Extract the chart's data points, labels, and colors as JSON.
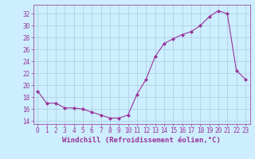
{
  "x": [
    0,
    1,
    2,
    3,
    4,
    5,
    6,
    7,
    8,
    9,
    10,
    11,
    12,
    13,
    14,
    15,
    16,
    17,
    18,
    19,
    20,
    21,
    22,
    23
  ],
  "y": [
    19,
    17,
    17,
    16.2,
    16.2,
    16,
    15.5,
    15,
    14.5,
    14.5,
    15,
    18.5,
    21,
    24.8,
    27,
    27.8,
    28.5,
    29,
    30,
    31.5,
    32.5,
    32,
    22.5,
    21
  ],
  "line_color": "#993399",
  "marker": "D",
  "marker_size": 2,
  "bg_color": "#cceeff",
  "grid_color": "#aaccdd",
  "xlabel": "Windchill (Refroidissement éolien,°C)",
  "xlabel_color": "#993399",
  "ylabel_ticks": [
    14,
    16,
    18,
    20,
    22,
    24,
    26,
    28,
    30,
    32
  ],
  "ylim": [
    13.5,
    33.5
  ],
  "xlim": [
    -0.5,
    23.5
  ],
  "tick_color": "#993399",
  "font_size": 5.5,
  "label_font_size": 6.5
}
